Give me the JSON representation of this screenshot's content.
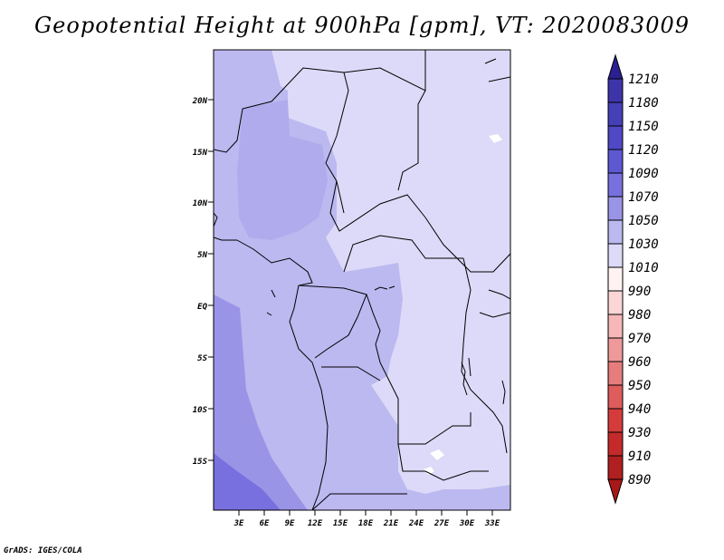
{
  "title": "Geopotential Height at 900hPa [gpm], VT: 2020083009",
  "footer": "GrADS: IGES/COLA",
  "axes": {
    "lat_ticks": [
      "20N",
      "15N",
      "10N",
      "5N",
      "EQ",
      "5S",
      "10S",
      "15S"
    ],
    "lon_ticks": [
      "3E",
      "6E",
      "9E",
      "12E",
      "15E",
      "18E",
      "21E",
      "24E",
      "27E",
      "30E",
      "33E"
    ]
  },
  "colorbar": {
    "levels": [
      {
        "label": "1210",
        "color": "#3a30a0"
      },
      {
        "label": "1180",
        "color": "#3e34aa"
      },
      {
        "label": "1150",
        "color": "#4640b8"
      },
      {
        "label": "1120",
        "color": "#5048c4"
      },
      {
        "label": "1090",
        "color": "#5e58d2"
      },
      {
        "label": "1070",
        "color": "#7870de"
      },
      {
        "label": "1050",
        "color": "#9a94e6"
      },
      {
        "label": "1030",
        "color": "#bcb8f0"
      },
      {
        "label": "1010",
        "color": "#dcdaf8"
      },
      {
        "label": "990",
        "color": "#fff2f2"
      },
      {
        "label": "980",
        "color": "#fcd6d6"
      },
      {
        "label": "970",
        "color": "#f6b8b8"
      },
      {
        "label": "960",
        "color": "#ee9a9a"
      },
      {
        "label": "950",
        "color": "#e67c7c"
      },
      {
        "label": "940",
        "color": "#de5c5c"
      },
      {
        "label": "930",
        "color": "#d43c3c"
      },
      {
        "label": "910",
        "color": "#c42a2a"
      },
      {
        "label": "890",
        "color": "#b02020"
      }
    ],
    "top_cap_color": "#2a2090",
    "bottom_cap_color": "#a81818"
  }
}
